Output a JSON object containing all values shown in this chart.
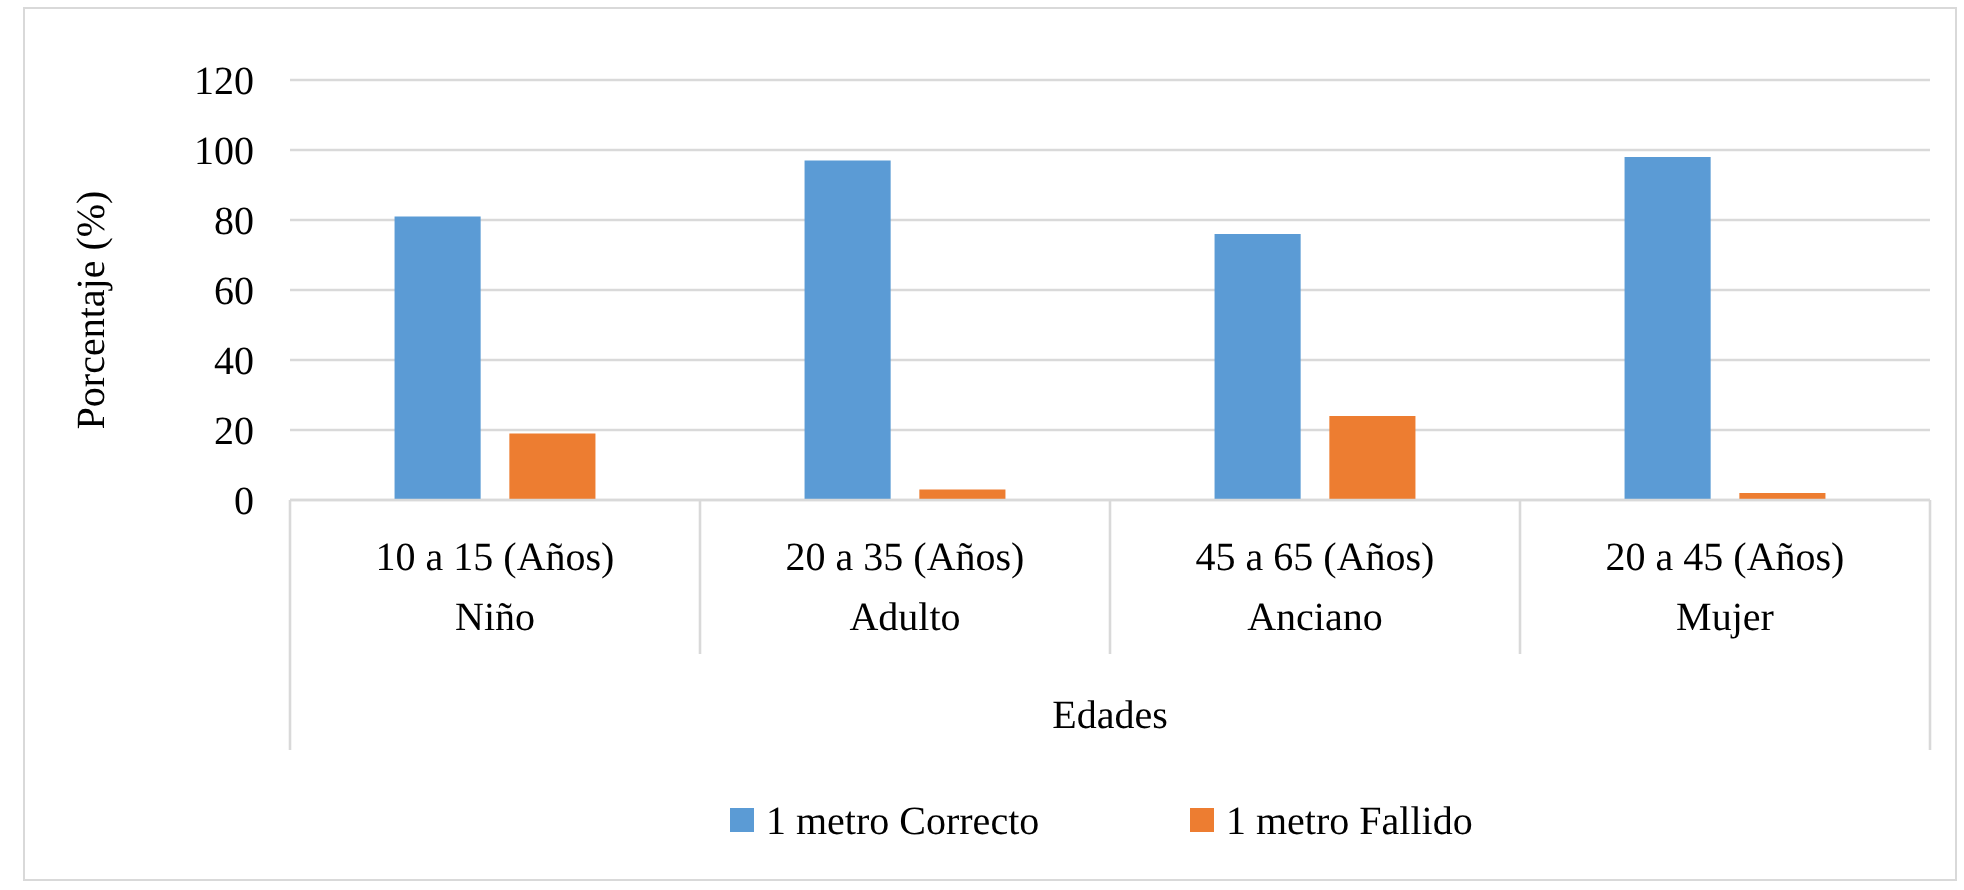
{
  "chart_data": {
    "type": "bar",
    "xlabel": "Edades",
    "ylabel": "Porcentaje (%)",
    "categories": [
      "10 a 15 (Años)\nNiño",
      "20 a 35 (Años)\nAdulto",
      "45 a 65 (Años)\nAnciano",
      "20 a 45 (Años)\nMujer"
    ],
    "series": [
      {
        "name": "1 metro Correcto",
        "color": "#5b9bd5",
        "values": [
          81,
          97,
          76,
          98
        ]
      },
      {
        "name": "1 metro Fallido",
        "color": "#ed7d31",
        "values": [
          19,
          3,
          24,
          2
        ]
      }
    ],
    "ylim": [
      0,
      120
    ],
    "yticks": [
      0,
      20,
      40,
      60,
      80,
      100,
      120
    ],
    "grid": "y",
    "legend": "bottom"
  }
}
